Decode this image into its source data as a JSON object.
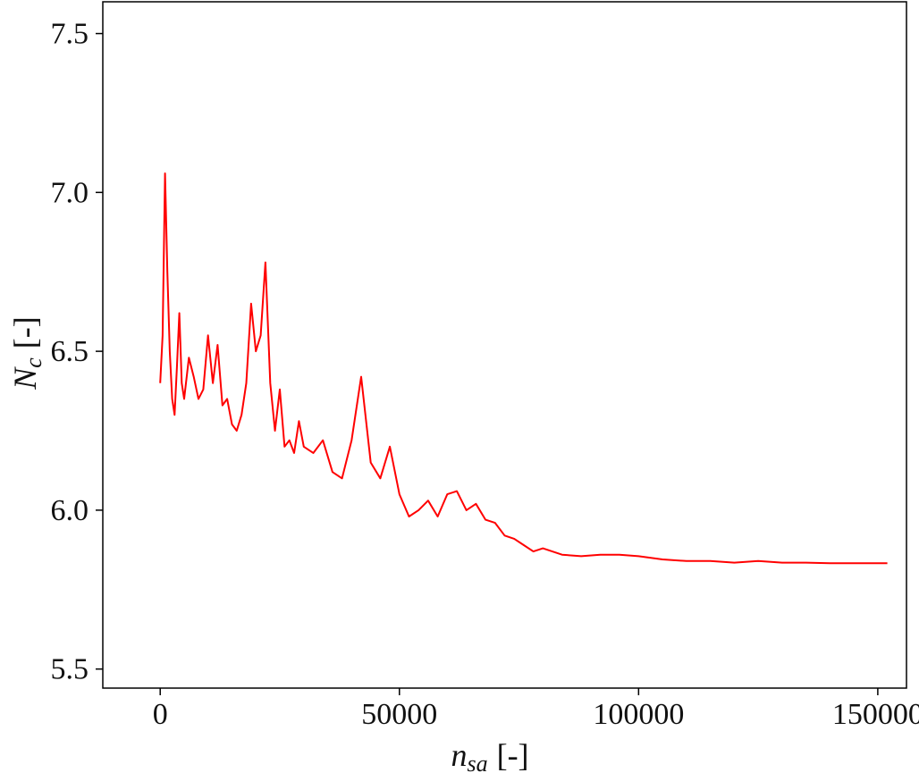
{
  "chart_data": {
    "type": "line",
    "title": "",
    "xlabel": {
      "main": "n",
      "sub": "sa",
      "unit": "[-]"
    },
    "ylabel": {
      "main": "N",
      "sub": "c",
      "unit": "[-]"
    },
    "xlim": [
      -12000,
      156000
    ],
    "ylim": [
      5.44,
      7.6
    ],
    "xticks": [
      0,
      50000,
      100000,
      150000
    ],
    "xtick_labels": [
      "0",
      "50000",
      "100000",
      "150000"
    ],
    "yticks": [
      5.5,
      6.0,
      6.5,
      7.0,
      7.5
    ],
    "ytick_labels": [
      "5.5",
      "6.0",
      "6.5",
      "7.0",
      "7.5"
    ],
    "grid": false,
    "legend": "none",
    "series": [
      {
        "color": "#ff0000",
        "x": [
          0,
          500,
          1000,
          1500,
          2000,
          2500,
          3000,
          3500,
          4000,
          4500,
          5000,
          6000,
          7000,
          8000,
          9000,
          10000,
          11000,
          12000,
          13000,
          14000,
          15000,
          16000,
          17000,
          18000,
          19000,
          20000,
          21000,
          22000,
          23000,
          24000,
          25000,
          26000,
          27000,
          28000,
          29000,
          30000,
          32000,
          34000,
          36000,
          38000,
          40000,
          42000,
          44000,
          46000,
          48000,
          50000,
          52000,
          54000,
          56000,
          58000,
          60000,
          62000,
          64000,
          66000,
          68000,
          70000,
          72000,
          74000,
          76000,
          78000,
          80000,
          84000,
          88000,
          92000,
          96000,
          100000,
          105000,
          110000,
          115000,
          120000,
          125000,
          130000,
          135000,
          140000,
          145000,
          150000,
          152000
        ],
        "y": [
          6.4,
          6.55,
          7.06,
          6.75,
          6.5,
          6.35,
          6.3,
          6.45,
          6.62,
          6.4,
          6.35,
          6.48,
          6.42,
          6.35,
          6.38,
          6.55,
          6.4,
          6.52,
          6.33,
          6.35,
          6.27,
          6.25,
          6.3,
          6.4,
          6.65,
          6.5,
          6.55,
          6.78,
          6.4,
          6.25,
          6.38,
          6.2,
          6.22,
          6.18,
          6.28,
          6.2,
          6.18,
          6.22,
          6.12,
          6.1,
          6.22,
          6.42,
          6.15,
          6.1,
          6.2,
          6.05,
          5.98,
          6.0,
          6.03,
          5.98,
          6.05,
          6.06,
          6.0,
          6.02,
          5.97,
          5.96,
          5.92,
          5.91,
          5.89,
          5.87,
          5.88,
          5.86,
          5.855,
          5.86,
          5.86,
          5.855,
          5.845,
          5.84,
          5.84,
          5.835,
          5.84,
          5.835,
          5.835,
          5.833,
          5.833,
          5.833,
          5.833
        ]
      }
    ]
  }
}
